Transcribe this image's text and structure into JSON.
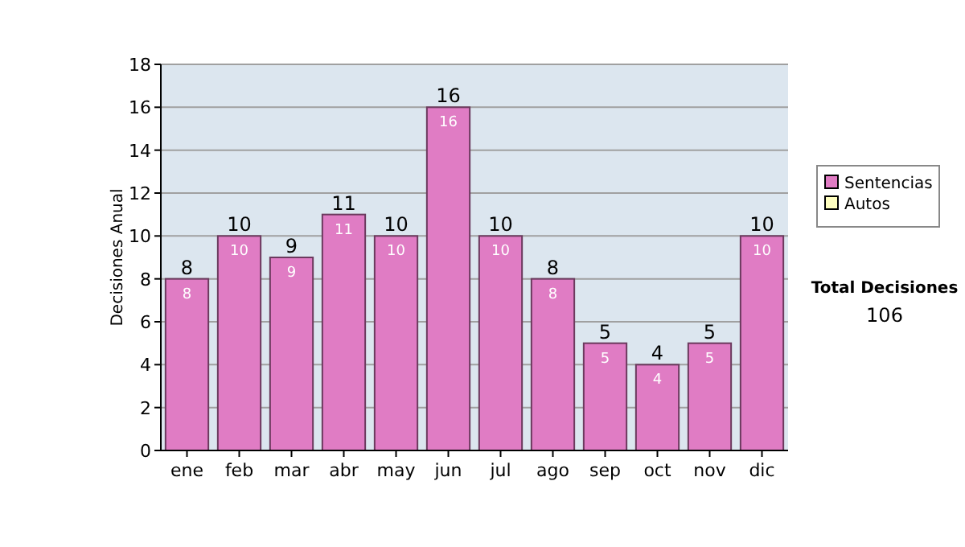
{
  "chart_data": {
    "type": "bar",
    "ylabel": "Decisiones Anual",
    "categories": [
      "ene",
      "feb",
      "mar",
      "abr",
      "may",
      "jun",
      "jul",
      "ago",
      "sep",
      "oct",
      "nov",
      "dic"
    ],
    "series": [
      {
        "name": "Sentencias",
        "color": "#e07cc4",
        "values": [
          8,
          10,
          9,
          11,
          10,
          16,
          10,
          8,
          5,
          4,
          5,
          10
        ],
        "value_labels": [
          "8",
          "10",
          "9",
          "11",
          "10",
          "16",
          "10",
          "8",
          "5",
          "4",
          "5",
          "10"
        ]
      },
      {
        "name": "Autos",
        "color": "#ffffc0",
        "values": [
          null,
          null,
          null,
          null,
          null,
          null,
          null,
          null,
          null,
          null,
          null,
          null
        ]
      }
    ],
    "totals": [
      "8",
      "10",
      "9",
      "11",
      "10",
      "16",
      "10",
      "8",
      "5",
      "4",
      "5",
      "10"
    ],
    "ylim": [
      0,
      18
    ],
    "yticks": [
      0,
      2,
      4,
      6,
      8,
      10,
      12,
      14,
      16,
      18
    ],
    "grid": "y",
    "legend": "right",
    "annotations": [
      "Total Decisiones",
      "106"
    ]
  }
}
